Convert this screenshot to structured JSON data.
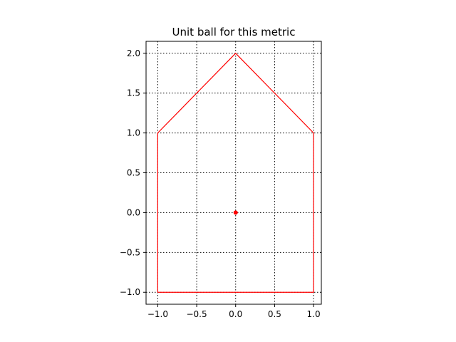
{
  "chart_data": {
    "type": "line",
    "title": "Unit ball for this metric",
    "xlabel": "",
    "ylabel": "",
    "xlim": [
      -1.15,
      1.1
    ],
    "ylim": [
      -1.15,
      2.15
    ],
    "grid": true,
    "grid_style": "dotted",
    "x_ticks": [
      -1.0,
      -0.5,
      0.0,
      0.5,
      1.0
    ],
    "x_tick_labels": [
      "−1.0",
      "−0.5",
      "0.0",
      "0.5",
      "1.0"
    ],
    "y_ticks": [
      -1.0,
      -0.5,
      0.0,
      0.5,
      1.0,
      1.5,
      2.0
    ],
    "y_tick_labels": [
      "−1.0",
      "−0.5",
      "0.0",
      "0.5",
      "1.0",
      "1.5",
      "2.0"
    ],
    "series": [
      {
        "kind": "polygon",
        "color": "#ff0000",
        "x": [
          -1.0,
          -1.0,
          0.0,
          1.0,
          1.0,
          -1.0
        ],
        "y": [
          -1.0,
          1.0,
          2.0,
          1.0,
          -1.0,
          -1.0
        ]
      },
      {
        "kind": "point",
        "color": "#ff0000",
        "x": [
          0.0
        ],
        "y": [
          0.0
        ]
      }
    ]
  }
}
